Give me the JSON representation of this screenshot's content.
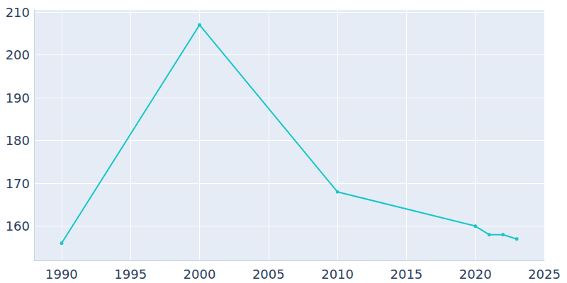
{
  "chart_data": {
    "type": "line",
    "x": [
      1990,
      2000,
      2010,
      2020,
      2021,
      2022,
      2023
    ],
    "values": [
      156,
      207,
      168,
      160,
      158,
      158,
      157
    ],
    "color": "#17c7c7",
    "marker": "circle",
    "xlim": [
      1988,
      2025
    ],
    "xticks": [
      1990,
      1995,
      2000,
      2005,
      2010,
      2015,
      2020,
      2025
    ],
    "ylim": [
      152,
      210.5
    ],
    "yticks": [
      160,
      170,
      180,
      190,
      200,
      210
    ],
    "grid": true
  }
}
